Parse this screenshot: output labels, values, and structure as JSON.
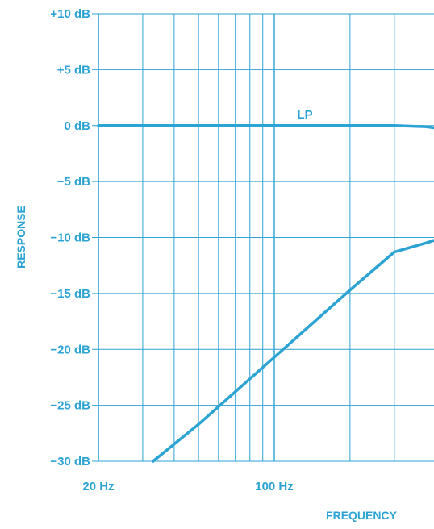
{
  "chart_data": {
    "type": "line",
    "title": "",
    "xlabel": "FREQUENCY",
    "ylabel": "RESPONSE",
    "x_scale": "log",
    "xlim": [
      20,
      550
    ],
    "ylim": [
      -30,
      10
    ],
    "grid": true,
    "x_tick_labels": [
      {
        "value": 20,
        "label": "20 Hz"
      },
      {
        "value": 100,
        "label": "100 Hz"
      }
    ],
    "x_gridlines": [
      20,
      30,
      40,
      50,
      60,
      70,
      80,
      90,
      100,
      200,
      300
    ],
    "y_ticks": [
      {
        "value": 10,
        "label": "+10 dB"
      },
      {
        "value": 5,
        "label": "+5 dB"
      },
      {
        "value": 0,
        "label": "0 dB"
      },
      {
        "value": -5,
        "label": "−5 dB"
      },
      {
        "value": -10,
        "label": "−10 dB"
      },
      {
        "value": -15,
        "label": "−15 dB"
      },
      {
        "value": -20,
        "label": "−20 dB"
      },
      {
        "value": -25,
        "label": "−25 dB"
      },
      {
        "value": -30,
        "label": "−30 dB"
      }
    ],
    "series": [
      {
        "name": "LP",
        "x": [
          20,
          50,
          100,
          200,
          300,
          400,
          500,
          550
        ],
        "y": [
          0,
          0,
          0,
          0,
          0,
          -0.1,
          -0.4,
          -0.6
        ]
      },
      {
        "name": "",
        "x": [
          33,
          50,
          100,
          200,
          300,
          400,
          500,
          550
        ],
        "y": [
          -30,
          -26.7,
          -20.7,
          -14.7,
          -11.3,
          -10.5,
          -9.8,
          -9.3
        ]
      }
    ]
  },
  "colors": {
    "ink": "#2ba3d3",
    "background": "#ffffff"
  }
}
